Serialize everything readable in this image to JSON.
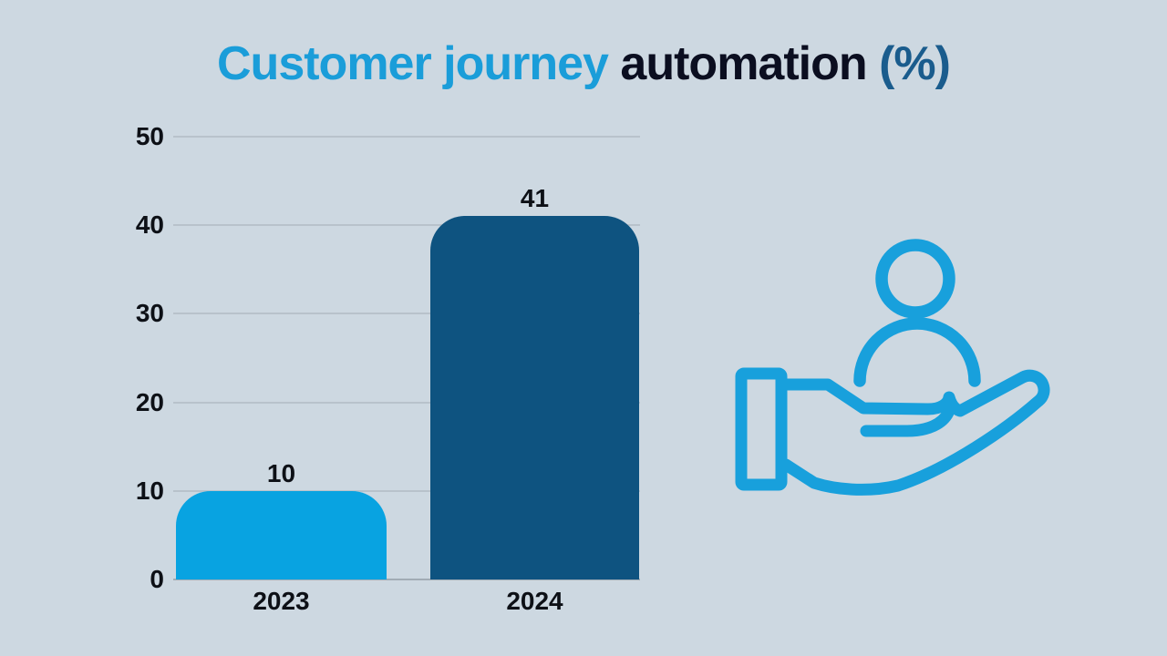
{
  "title": {
    "part1": "Customer journey",
    "part2": " automation",
    "part3": " (%)"
  },
  "chart_data": {
    "type": "bar",
    "title": "Customer journey automation (%)",
    "categories": [
      "2023",
      "2024"
    ],
    "values": [
      10,
      41
    ],
    "value_labels": [
      "10",
      "41"
    ],
    "bar_colors": [
      "#08a3e1",
      "#0e5380"
    ],
    "xlabel": "",
    "ylabel": "",
    "ylim": [
      0,
      50
    ],
    "yticks": [
      0,
      10,
      20,
      30,
      40,
      50
    ],
    "grid": "horizontal gridlines, no vertical axis line",
    "legend": "none"
  },
  "colors": {
    "background": "#cdd8e1",
    "title_blue": "#1a9dd9",
    "title_dark": "#0b0e20",
    "title_percent": "#1a5c8d",
    "gridline": "#b8c2cb",
    "baseline": "#a2acb5",
    "axis_text": "#0d1016",
    "icon_blue": "#18a0dc"
  },
  "icon": {
    "name": "hand-holding-person",
    "meaning": "customer care / customer held in hand",
    "color": "#18a0dc"
  }
}
